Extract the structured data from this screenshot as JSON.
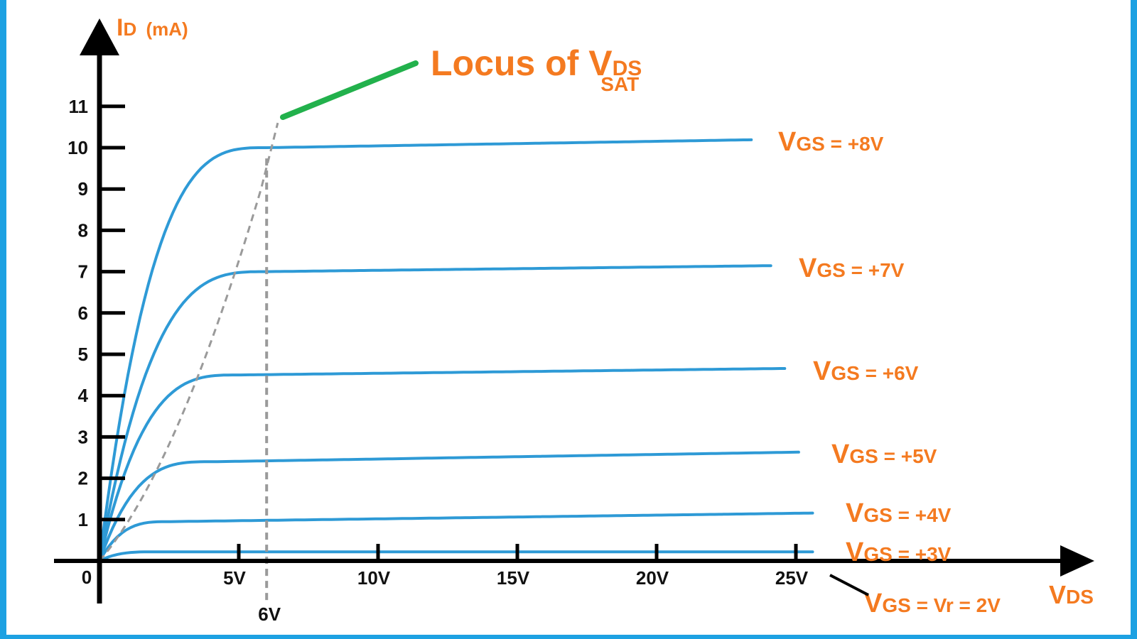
{
  "chart_data": {
    "type": "line",
    "x_axis": {
      "label_main": "V",
      "label_sub": "DS",
      "ticks": [
        5,
        10,
        15,
        20,
        25
      ],
      "tick_labels": [
        "5V",
        "10V",
        "15V",
        "20V",
        "25V"
      ],
      "range": [
        0,
        36
      ],
      "origin_label": "0"
    },
    "y_axis": {
      "label_main": "I",
      "label_sub": "D",
      "label_unit": "(mA)",
      "ticks": [
        1,
        2,
        3,
        4,
        5,
        6,
        7,
        8,
        9,
        10,
        11
      ],
      "tick_labels": [
        "1",
        "2",
        "3",
        "4",
        "5",
        "6",
        "7",
        "8",
        "9",
        "10",
        "11"
      ],
      "range": [
        0,
        12.5
      ]
    },
    "series": [
      {
        "name": "VGS = +8V",
        "label_main": "V",
        "label_sub": "GS",
        "label_rest": " = +8V",
        "id_sat": 10.0,
        "vds_sat": 6.0,
        "slope": 0.011,
        "vds_end": 23.4
      },
      {
        "name": "VGS = +7V",
        "label_main": "V",
        "label_sub": "GS",
        "label_rest": " = +7V",
        "id_sat": 7.0,
        "vds_sat": 6.0,
        "slope": 0.008,
        "vds_end": 24.1
      },
      {
        "name": "VGS = +6V",
        "label_main": "V",
        "label_sub": "GS",
        "label_rest": " = +6V",
        "id_sat": 4.5,
        "vds_sat": 5.0,
        "slope": 0.008,
        "vds_end": 24.6
      },
      {
        "name": "VGS = +5V",
        "label_main": "V",
        "label_sub": "GS",
        "label_rest": " = +5V",
        "id_sat": 2.4,
        "vds_sat": 4.0,
        "slope": 0.011,
        "vds_end": 25.1
      },
      {
        "name": "VGS = +4V",
        "label_main": "V",
        "label_sub": "GS",
        "label_rest": " = +4V",
        "id_sat": 0.95,
        "vds_sat": 2.5,
        "slope": 0.009,
        "vds_end": 25.6
      },
      {
        "name": "VGS = +3V",
        "label_main": "V",
        "label_sub": "GS",
        "label_rest": " = +3V",
        "id_sat": 0.22,
        "vds_sat": 2.0,
        "slope": 0.0,
        "vds_end": 25.6
      },
      {
        "name": "VGS = Vr = 2V",
        "label_main": "V",
        "label_sub": "GS",
        "label_rest": " = Vr = 2V",
        "id_sat": 0.0,
        "vds_sat": 0.0,
        "slope": 0.0,
        "vds_end": 25.6
      }
    ],
    "locus": {
      "label_prefix": "Locus of ",
      "label_main": "V",
      "label_sub": "DS",
      "label_subsub": "SAT",
      "marker_label": "6V",
      "marker_x": 6
    }
  },
  "colors": {
    "curve": "#2e9ad6",
    "axis": "#000000",
    "label": "#f47a20",
    "locus": "#9a9a9a",
    "pointer": "#22b14c",
    "frame": "#1da1e2"
  }
}
